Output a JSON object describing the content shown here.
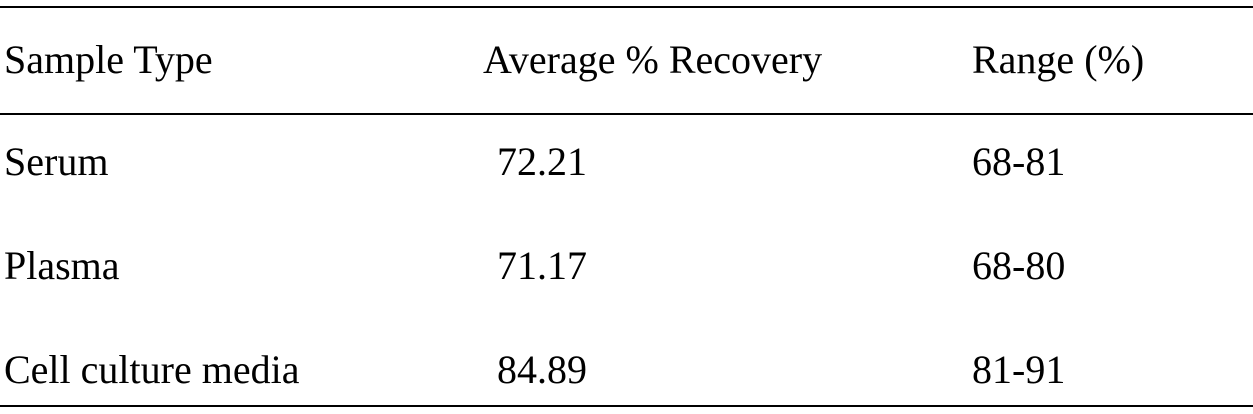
{
  "table": {
    "header": [
      "Sample Type",
      "Average % Recovery",
      "Range (%)"
    ],
    "rows": [
      [
        "Serum",
        "72.21",
        "68-81"
      ],
      [
        "Plasma",
        "71.17",
        "68-80"
      ],
      [
        "Cell culture media",
        "84.89",
        "81-91"
      ]
    ]
  }
}
